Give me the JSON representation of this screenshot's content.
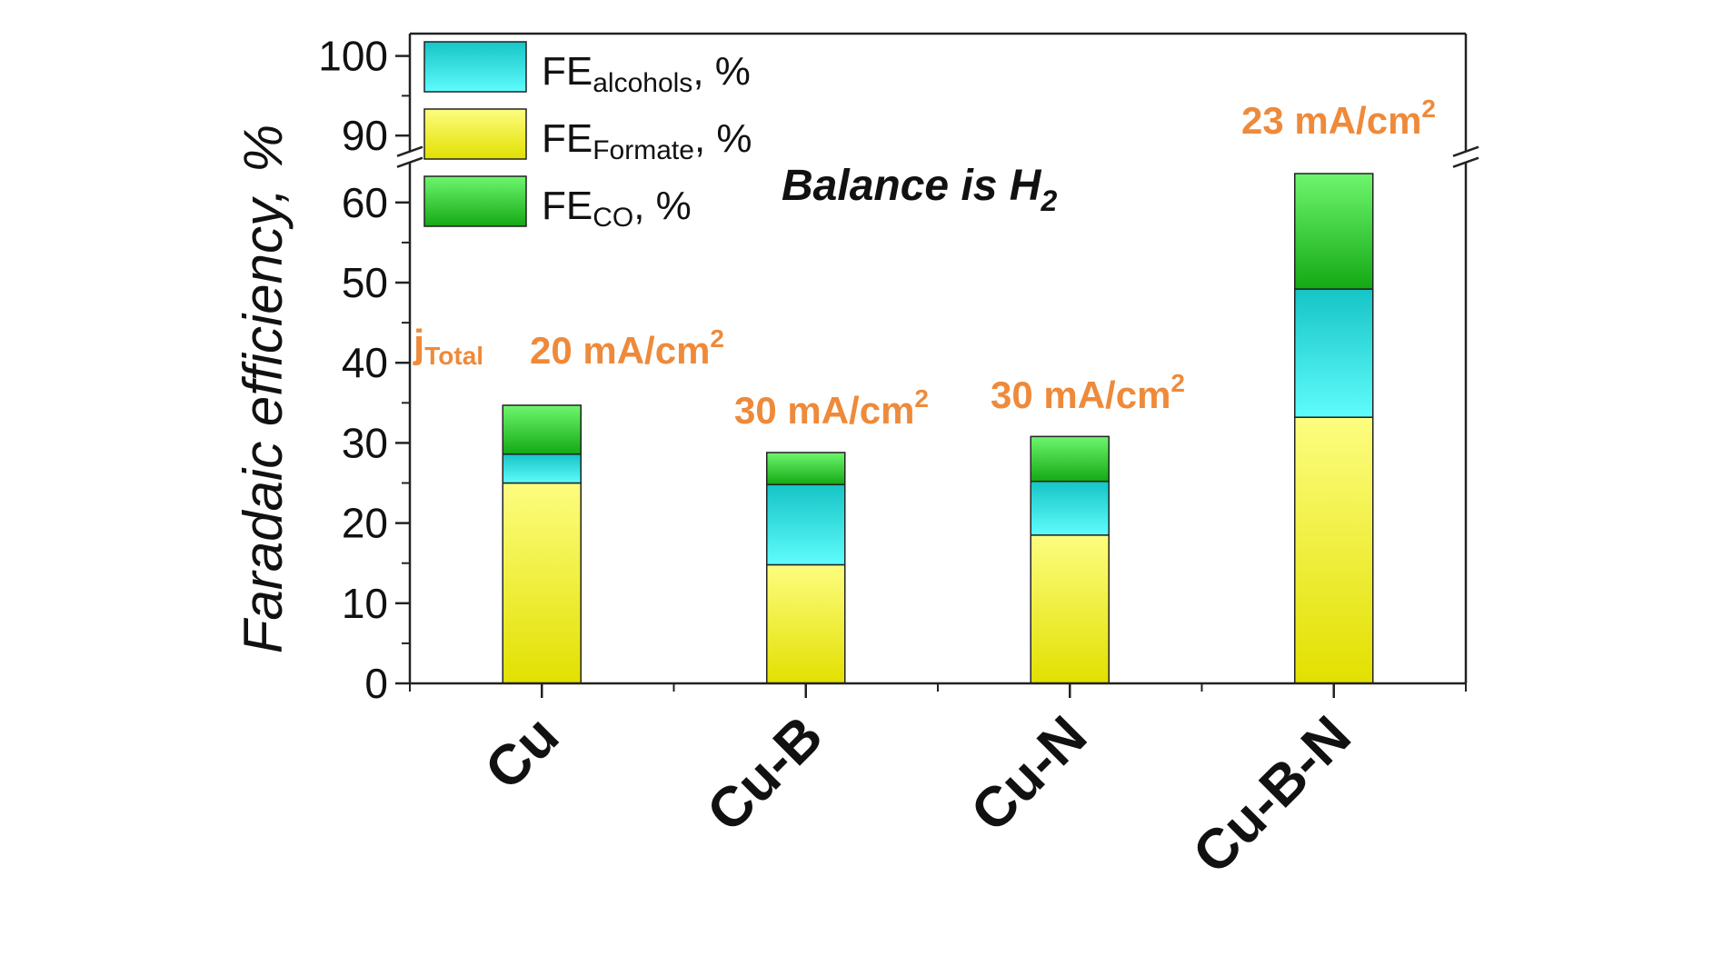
{
  "chart_data": {
    "type": "bar",
    "stacked": true,
    "categories": [
      "Cu",
      "Cu-B",
      "Cu-N",
      "Cu-B-N"
    ],
    "series": [
      {
        "name": "FE_Formate, %",
        "values": [
          25.0,
          14.8,
          18.5,
          33.2
        ]
      },
      {
        "name": "FE_alcohols, %",
        "values": [
          3.6,
          10.0,
          6.7,
          16.0
        ]
      },
      {
        "name": "FE_CO, %",
        "values": [
          6.1,
          4.0,
          5.6,
          14.4
        ]
      }
    ],
    "ylabel": "Faradaic efficiency, %",
    "ylim": [
      0,
      100
    ],
    "y_axis_break": [
      65,
      88
    ],
    "yticks": [
      "0",
      "10",
      "20",
      "30",
      "40",
      "50",
      "60",
      "90",
      "100"
    ],
    "legend": {
      "placement": "top-left",
      "entries": [
        {
          "base": "FE",
          "sub": "alcohols",
          "suffix": ", %"
        },
        {
          "base": "FE",
          "sub": "Formate",
          "suffix": ", %"
        },
        {
          "base": "FE",
          "sub": "CO",
          "suffix": ", %"
        }
      ]
    },
    "annotations": {
      "balance": {
        "text": "Balance is H",
        "sub": "2"
      },
      "jtotal": {
        "base": "j",
        "sub": "Total"
      },
      "current_densities": [
        {
          "value": "20 mA/cm",
          "sup": "2"
        },
        {
          "value": "30 mA/cm",
          "sup": "2"
        },
        {
          "value": "30 mA/cm",
          "sup": "2"
        },
        {
          "value": "23 mA/cm",
          "sup": "2"
        }
      ]
    },
    "colors": {
      "formate": [
        "#fdfd80",
        "#e2e000"
      ],
      "alcohols": [
        "#5ffcfc",
        "#16c4c6"
      ],
      "co": [
        "#6ef66e",
        "#14a914"
      ],
      "annotation": "#ee8a3a"
    },
    "grid": false
  }
}
